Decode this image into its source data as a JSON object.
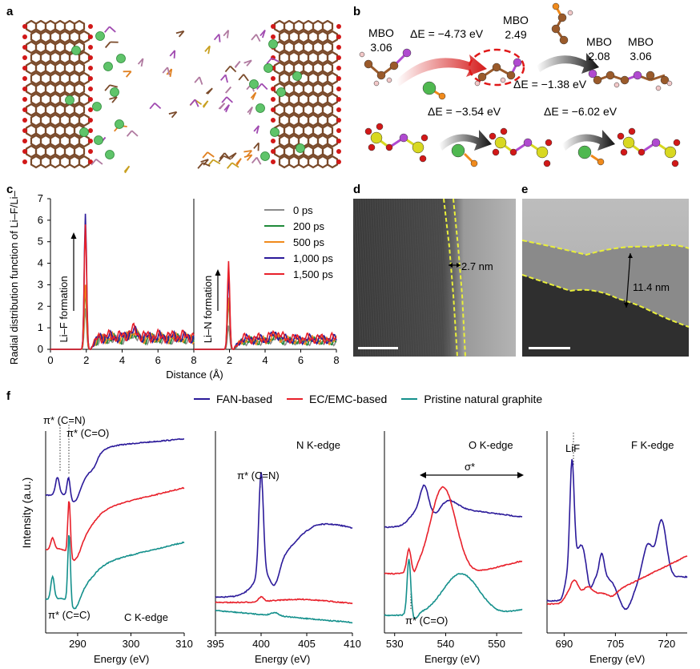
{
  "panels": {
    "a": {
      "label": "a"
    },
    "b": {
      "label": "b",
      "mbo_left": {
        "title": "MBO",
        "value": "3.06"
      },
      "dE1": "ΔE = −4.73 eV",
      "mbo_mid": {
        "title": "MBO",
        "value": "2.49"
      },
      "dE2": "ΔE = −1.38 eV",
      "mbo_r1": {
        "title": "MBO",
        "value": "2.08"
      },
      "mbo_r2": {
        "title": "MBO",
        "value": "3.06"
      },
      "dE3": "ΔE = −3.54 eV",
      "dE4": "ΔE = −6.02 eV"
    },
    "c": {
      "label": "c"
    },
    "d": {
      "label": "d",
      "thickness": "2.7 nm"
    },
    "e": {
      "label": "e",
      "thickness": "11.4 nm"
    },
    "f": {
      "label": "f",
      "legend": [
        {
          "name": "FAN-based",
          "color": "#2b1a9a"
        },
        {
          "name": "EC/EMC-based",
          "color": "#e8202a"
        },
        {
          "name": "Pristine natural graphite",
          "color": "#14908c"
        }
      ],
      "ylabel": "Intensity (a.u.)",
      "xlabel": "Energy (eV)",
      "c_edge": {
        "title": "C K-edge",
        "ann1": "π* (C=N)",
        "ann2": "π* (C=O)",
        "ann3": "π* (C=C)",
        "ticks": [
          "290",
          "300",
          "310"
        ]
      },
      "n_edge": {
        "title": "N K-edge",
        "ann1": "π* (C=N)",
        "ticks": [
          "395",
          "400",
          "405",
          "410"
        ]
      },
      "o_edge": {
        "title": "O K-edge",
        "ann1": "σ*",
        "ann2": "π* (C=O)",
        "ticks": [
          "530",
          "540",
          "550"
        ]
      },
      "f_edge": {
        "title": "F K-edge",
        "ann1": "LiF",
        "ticks": [
          "690",
          "705",
          "720"
        ]
      }
    }
  },
  "chart_data": {
    "type": "line",
    "title": "",
    "ylabel": "Radial distribution function of Li–F/Li–N",
    "xlabel": "Distance (Å)",
    "ylim": [
      0,
      7
    ],
    "yticks": [
      "0",
      "1",
      "2",
      "3",
      "4",
      "5",
      "6",
      "7"
    ],
    "left_xticks": [
      "0",
      "2",
      "4",
      "6",
      "8"
    ],
    "right_xticks": [
      "2",
      "4",
      "6",
      "8"
    ],
    "left_annotation": "Li–F formation",
    "right_annotation": "Li–N formation",
    "legend_position": "top-right",
    "series": [
      {
        "name": "0 ps",
        "color": "#8a8a8a",
        "lif_peak": 1.9,
        "lin_peak": 1.1
      },
      {
        "name": "200 ps",
        "color": "#1f8a3a",
        "lif_peak": 2.8,
        "lin_peak": 2.3
      },
      {
        "name": "500 ps",
        "color": "#f08a1c",
        "lif_peak": 3.0,
        "lin_peak": 2.4
      },
      {
        "name": "1,000 ps",
        "color": "#2b1a9a",
        "lif_peak": 6.3,
        "lin_peak": 3.5
      },
      {
        "name": "1,500 ps",
        "color": "#e8202a",
        "lif_peak": 5.8,
        "lin_peak": 4.1
      }
    ]
  }
}
